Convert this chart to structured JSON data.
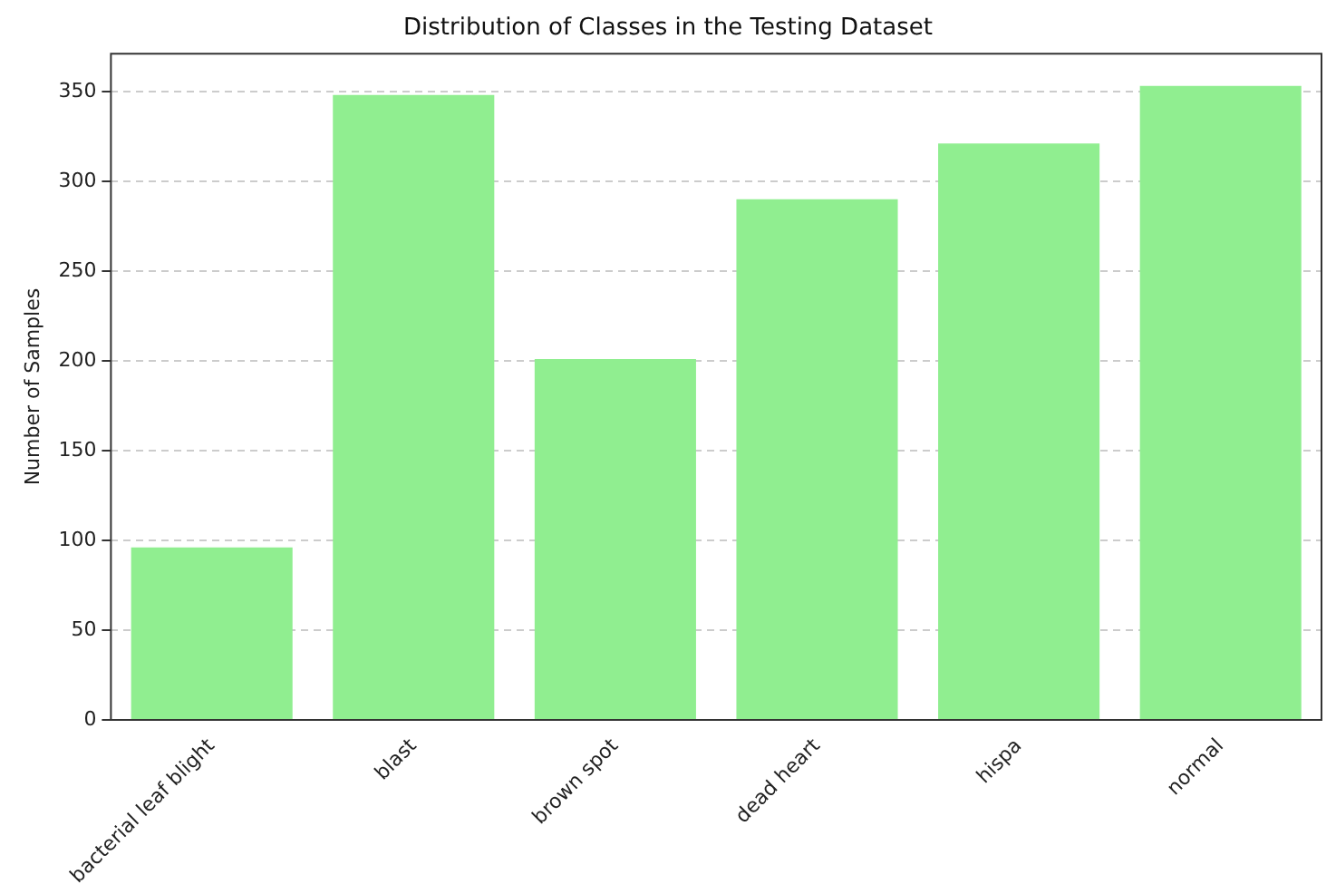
{
  "chart_data": {
    "type": "bar",
    "title": "Distribution of Classes in the Testing Dataset",
    "ylabel": "Number of Samples",
    "categories": [
      "bacterial leaf blight",
      "blast",
      "brown spot",
      "dead heart",
      "hispa",
      "normal"
    ],
    "values": [
      96,
      348,
      201,
      290,
      321,
      353
    ],
    "color": "#90ee90",
    "ylim": [
      0,
      371
    ],
    "yticks": [
      0,
      50,
      100,
      150,
      200,
      250,
      300,
      350
    ],
    "grid": "y"
  }
}
